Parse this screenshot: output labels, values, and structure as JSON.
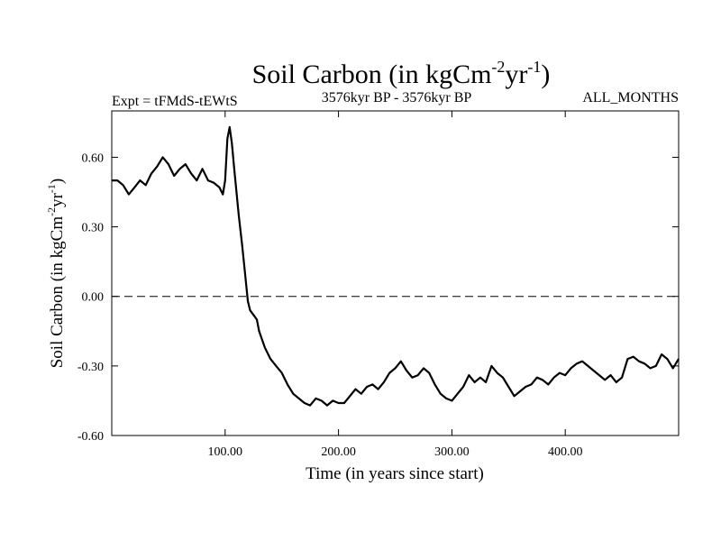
{
  "chart_data": {
    "type": "line",
    "title": {
      "main": "Soil Carbon (in kgCm",
      "sup1": "-2",
      "mid": "yr",
      "sup2": "-1",
      "end": ")"
    },
    "subtitle_left": "Expt = tFMdS-tEWtS",
    "subtitle_center": "3576kyr BP - 3576kyr BP",
    "subtitle_right": "ALL_MONTHS",
    "xlabel": "Time (in years since start)",
    "ylabel": {
      "main": "Soil Carbon (in kgCm",
      "sup1": "-2",
      "mid": "yr",
      "sup2": "-1",
      "end": ")"
    },
    "xlim": [
      0,
      500
    ],
    "ylim": [
      -0.6,
      0.8
    ],
    "x_ticks": [
      100,
      200,
      300,
      400
    ],
    "x_tick_labels": [
      "100.00",
      "200.00",
      "300.00",
      "400.00"
    ],
    "y_ticks": [
      -0.6,
      -0.3,
      0.0,
      0.3,
      0.6
    ],
    "y_tick_labels": [
      "-0.60",
      "-0.30",
      "0.00",
      "0.30",
      "0.60"
    ],
    "reference_line": {
      "y": 0.0,
      "style": "dashed"
    },
    "series": [
      {
        "name": "Soil Carbon",
        "x": [
          0,
          5,
          10,
          15,
          20,
          25,
          30,
          35,
          40,
          45,
          50,
          55,
          60,
          65,
          70,
          75,
          80,
          85,
          90,
          95,
          98,
          100,
          102,
          104,
          106,
          108,
          110,
          112,
          115,
          118,
          120,
          122,
          125,
          128,
          130,
          135,
          140,
          145,
          150,
          155,
          160,
          165,
          170,
          175,
          180,
          185,
          190,
          195,
          200,
          205,
          210,
          215,
          220,
          225,
          230,
          235,
          240,
          245,
          250,
          255,
          260,
          265,
          270,
          275,
          280,
          285,
          290,
          295,
          300,
          305,
          310,
          315,
          320,
          325,
          330,
          335,
          340,
          345,
          350,
          355,
          360,
          365,
          370,
          375,
          380,
          385,
          390,
          395,
          400,
          405,
          410,
          415,
          420,
          425,
          430,
          435,
          440,
          445,
          450,
          455,
          460,
          465,
          470,
          475,
          480,
          485,
          490,
          495,
          500
        ],
        "values": [
          0.5,
          0.5,
          0.48,
          0.44,
          0.47,
          0.5,
          0.48,
          0.53,
          0.56,
          0.6,
          0.57,
          0.52,
          0.55,
          0.57,
          0.53,
          0.5,
          0.55,
          0.5,
          0.49,
          0.47,
          0.44,
          0.5,
          0.68,
          0.73,
          0.66,
          0.55,
          0.45,
          0.35,
          0.22,
          0.08,
          -0.02,
          -0.06,
          -0.08,
          -0.1,
          -0.15,
          -0.22,
          -0.27,
          -0.3,
          -0.33,
          -0.38,
          -0.42,
          -0.44,
          -0.46,
          -0.47,
          -0.44,
          -0.45,
          -0.47,
          -0.45,
          -0.46,
          -0.46,
          -0.43,
          -0.4,
          -0.42,
          -0.39,
          -0.38,
          -0.4,
          -0.37,
          -0.33,
          -0.31,
          -0.28,
          -0.32,
          -0.35,
          -0.34,
          -0.31,
          -0.33,
          -0.38,
          -0.42,
          -0.44,
          -0.45,
          -0.42,
          -0.39,
          -0.34,
          -0.37,
          -0.35,
          -0.37,
          -0.3,
          -0.33,
          -0.35,
          -0.39,
          -0.43,
          -0.41,
          -0.39,
          -0.38,
          -0.35,
          -0.36,
          -0.38,
          -0.35,
          -0.33,
          -0.34,
          -0.31,
          -0.29,
          -0.28,
          -0.3,
          -0.32,
          -0.34,
          -0.36,
          -0.34,
          -0.37,
          -0.35,
          -0.27,
          -0.26,
          -0.28,
          -0.29,
          -0.31,
          -0.3,
          -0.25,
          -0.27,
          -0.31,
          -0.27
        ]
      }
    ]
  }
}
